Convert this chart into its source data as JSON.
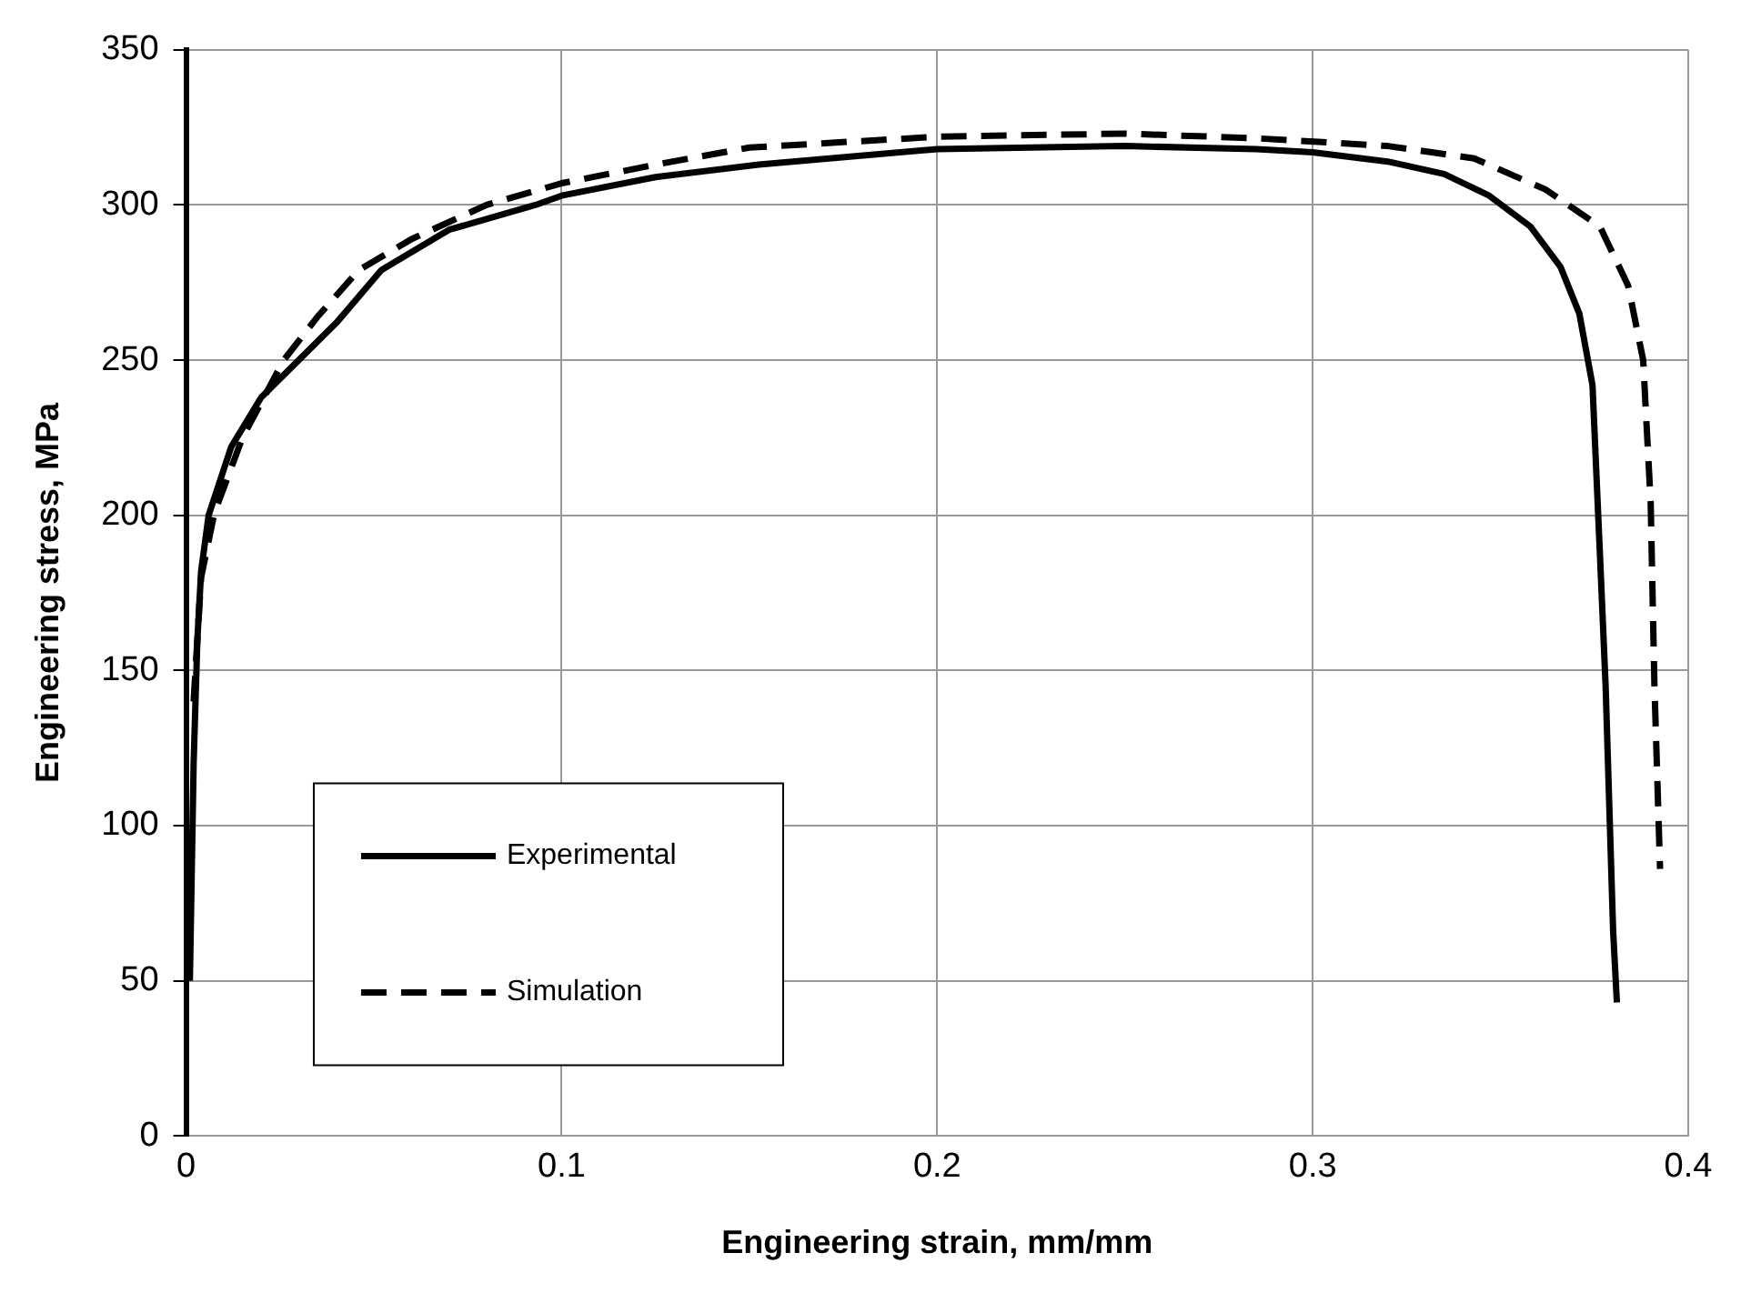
{
  "chart_data": {
    "type": "line",
    "xlabel": "Engineering strain, mm/mm",
    "ylabel": "Engineering stress, MPa",
    "xlim": [
      0,
      0.4
    ],
    "xticks": [
      0,
      0.1,
      0.2,
      0.3,
      0.4
    ],
    "ylim": [
      0,
      350
    ],
    "yticks": [
      0,
      50,
      100,
      150,
      200,
      250,
      300,
      350
    ],
    "grid": true,
    "legend": "bottom left",
    "marker": "none",
    "series": [
      {
        "name": "Experimental",
        "color": "#000000",
        "line_style": "solid",
        "x": [
          0.001,
          0.002,
          0.003,
          0.004,
          0.006,
          0.012,
          0.02,
          0.03,
          0.04,
          0.052,
          0.07,
          0.093,
          0.1,
          0.125,
          0.1525,
          0.2,
          0.25,
          0.285,
          0.3,
          0.32,
          0.335,
          0.347,
          0.358,
          0.366,
          0.371,
          0.3745,
          0.3765,
          0.378,
          0.38,
          0.381
        ],
        "values": [
          50,
          120,
          160,
          182,
          200,
          222,
          238,
          250,
          262,
          279,
          292,
          300,
          303,
          309,
          313,
          318,
          319,
          318,
          317,
          314,
          310,
          303,
          293,
          280,
          265,
          242,
          187,
          145,
          66,
          43
        ]
      },
      {
        "name": "Simulation",
        "color": "#000000",
        "line_style": "dashed",
        "x": [
          0.002,
          0.004,
          0.0075,
          0.015,
          0.026,
          0.035,
          0.046,
          0.06,
          0.08,
          0.1,
          0.125,
          0.15,
          0.2,
          0.25,
          0.285,
          0.32,
          0.343,
          0.362,
          0.3765,
          0.384,
          0.388,
          0.39,
          0.391,
          0.3925
        ],
        "values": [
          140,
          180,
          200.6,
          225,
          250,
          264,
          279,
          289,
          300,
          307,
          313,
          318.5,
          322,
          323,
          321.5,
          319,
          315,
          305,
          293,
          274,
          250,
          204,
          145,
          86
        ]
      }
    ]
  }
}
